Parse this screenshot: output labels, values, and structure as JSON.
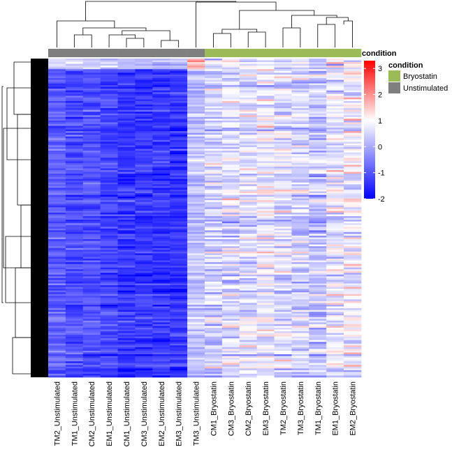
{
  "chart_data": {
    "type": "heatmap",
    "samples": [
      "TM2_Unstimulated",
      "TM1_Unstimulated",
      "CM2_Unstimulated",
      "EM1_Unstimulated",
      "CM1_Unstimulated",
      "CM3_Unstimulated",
      "EM2_Unstimulated",
      "EM3_Unstimulated",
      "TM3_Unstimulated",
      "CM1_Bryostatin",
      "CM3_Bryostatin",
      "CM2_Bryostatin",
      "EM3_Bryostatin",
      "TM2_Bryostatin",
      "TM3_Bryostatin",
      "TM1_Bryostatin",
      "EM1_Bryostatin",
      "EM2_Bryostatin"
    ],
    "sample_condition": [
      "Unstimulated",
      "Unstimulated",
      "Unstimulated",
      "Unstimulated",
      "Unstimulated",
      "Unstimulated",
      "Unstimulated",
      "Unstimulated",
      "Unstimulated",
      "Bryostatin",
      "Bryostatin",
      "Bryostatin",
      "Bryostatin",
      "Bryostatin",
      "Bryostatin",
      "Bryostatin",
      "Bryostatin",
      "Bryostatin"
    ],
    "column_group_means": [
      -0.9,
      -1.1,
      -1.1,
      -1.2,
      -1.35,
      -1.35,
      -1.35,
      -1.4,
      0.3,
      0.4,
      0.6,
      0.6,
      0.8,
      0.6,
      0.5,
      0.3,
      0.7,
      0.8
    ],
    "n_rows": 180,
    "value_range": [
      -2,
      3.3
    ],
    "colorscale": [
      {
        "value": -2,
        "color": "#0000ff"
      },
      {
        "value": 1,
        "color": "#ffffff"
      },
      {
        "value": 3.3,
        "color": "#ff0000"
      }
    ],
    "colorbar_ticks": [
      "3",
      "2",
      "1",
      "0",
      "-1",
      "-2"
    ],
    "colorbar_tick_values": [
      3,
      2,
      1,
      0,
      -1,
      -2
    ],
    "annotation_track_label": "condition",
    "legend": {
      "title": "condition",
      "entries": [
        {
          "label": "Bryostatin",
          "color": "#9bbb59"
        },
        {
          "label": "Unstimulated",
          "color": "#7f7f7f"
        }
      ]
    },
    "row_dendrogram": true,
    "column_dendrogram": true
  }
}
